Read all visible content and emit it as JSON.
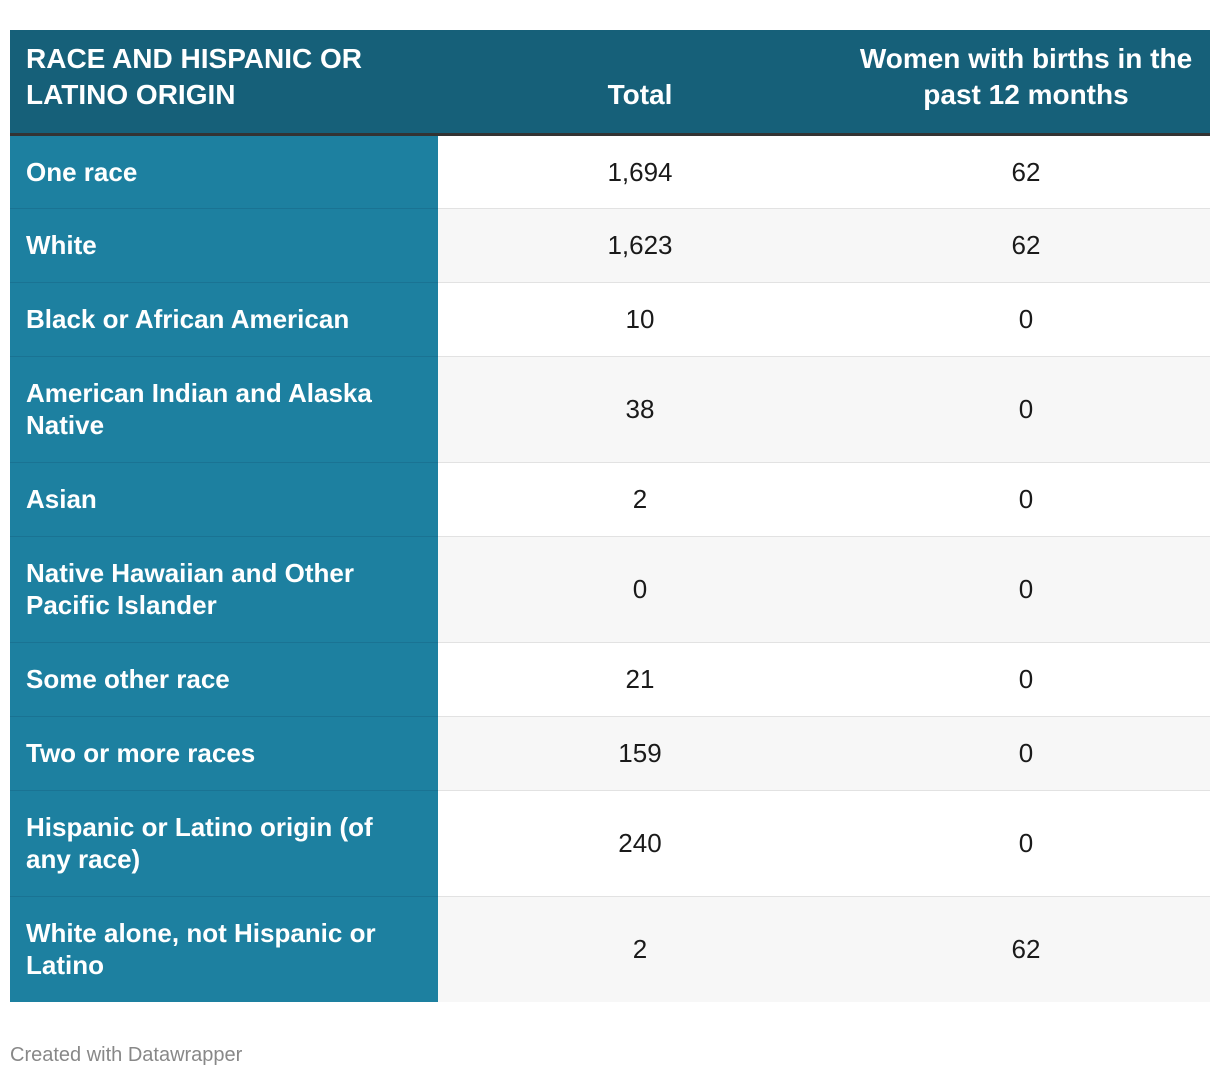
{
  "chart_data": {
    "type": "table",
    "columns": [
      "RACE AND HISPANIC OR LATINO ORIGIN",
      "Total",
      "Women with births in the past 12 months"
    ],
    "rows": [
      {
        "label": "One race",
        "total": "1,694",
        "births": "62"
      },
      {
        "label": "White",
        "total": "1,623",
        "births": "62"
      },
      {
        "label": "Black or African American",
        "total": "10",
        "births": "0"
      },
      {
        "label": "American Indian and Alaska Native",
        "total": "38",
        "births": "0"
      },
      {
        "label": "Asian",
        "total": "2",
        "births": "0"
      },
      {
        "label": "Native Hawaiian and Other Pacific Islander",
        "total": "0",
        "births": "0"
      },
      {
        "label": "Some other race",
        "total": "21",
        "births": "0"
      },
      {
        "label": "Two or more races",
        "total": "159",
        "births": "0"
      },
      {
        "label": "Hispanic or Latino origin (of any race)",
        "total": "240",
        "births": "0"
      },
      {
        "label": "White alone, not Hispanic or Latino",
        "total": "2",
        "births": "62"
      }
    ]
  },
  "footer": {
    "credit": "Created with Datawrapper"
  },
  "colors": {
    "header_bg": "#166079",
    "row_header_bg": "#1d80a0",
    "even_row_bg": "#f7f7f7"
  }
}
